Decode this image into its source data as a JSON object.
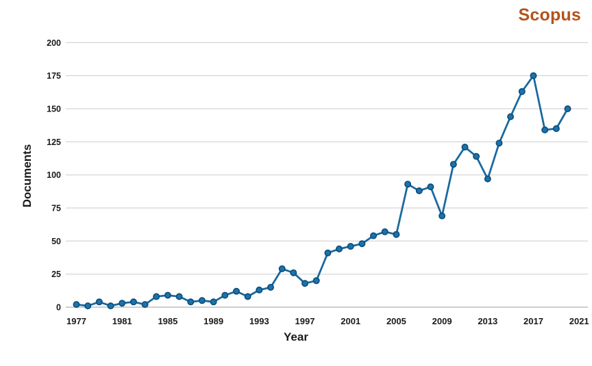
{
  "brand": {
    "label": "Scopus",
    "color": "#b4531b"
  },
  "chart_data": {
    "type": "line",
    "title": "",
    "xlabel": "Year",
    "ylabel": "Documents",
    "xlim": [
      1976,
      2022
    ],
    "ylim": [
      0,
      200
    ],
    "grid": "horizontal",
    "legend": "none",
    "x_ticks": [
      1977,
      1981,
      1985,
      1989,
      1993,
      1997,
      2001,
      2005,
      2009,
      2013,
      2017,
      2021
    ],
    "y_ticks": [
      0,
      25,
      50,
      75,
      100,
      125,
      150,
      175,
      200
    ],
    "line_color": "#1a699e",
    "marker_fill_color": "#1d72ab",
    "marker_edge_color": "#0b4c77",
    "gridline_color": "#cbcbcb",
    "axisline_color": "#9e9e9e",
    "tick_label_color": "#1a1a1a",
    "series": [
      {
        "name": "Documents",
        "x": [
          1977,
          1978,
          1979,
          1980,
          1981,
          1982,
          1983,
          1984,
          1985,
          1986,
          1987,
          1988,
          1989,
          1990,
          1991,
          1992,
          1993,
          1994,
          1995,
          1996,
          1997,
          1998,
          1999,
          2000,
          2001,
          2002,
          2003,
          2004,
          2005,
          2006,
          2007,
          2008,
          2009,
          2010,
          2011,
          2012,
          2013,
          2014,
          2015,
          2016,
          2017,
          2018,
          2019,
          2020
        ],
        "values": [
          2,
          1,
          4,
          1,
          3,
          4,
          2,
          8,
          9,
          8,
          4,
          5,
          4,
          9,
          12,
          8,
          13,
          15,
          29,
          26,
          18,
          20,
          41,
          44,
          46,
          48,
          54,
          57,
          55,
          93,
          88,
          91,
          69,
          108,
          121,
          114,
          97,
          124,
          144,
          163,
          175,
          134,
          135,
          150
        ]
      }
    ]
  }
}
